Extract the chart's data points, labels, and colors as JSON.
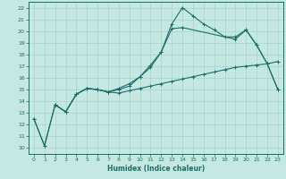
{
  "background_color": "#c5e8e2",
  "grid_color": "#9dcfc8",
  "line_color": "#1a6e6a",
  "xlabel": "Humidex (Indice chaleur)",
  "xlim": [
    -0.5,
    23.5
  ],
  "ylim": [
    9.5,
    22.5
  ],
  "xticks": [
    0,
    1,
    2,
    3,
    4,
    5,
    6,
    7,
    8,
    9,
    10,
    11,
    12,
    13,
    14,
    15,
    16,
    17,
    18,
    19,
    20,
    21,
    22,
    23
  ],
  "yticks": [
    10,
    11,
    12,
    13,
    14,
    15,
    16,
    17,
    18,
    19,
    20,
    21,
    22
  ],
  "line1_x": [
    0,
    1,
    2,
    3,
    4,
    5,
    6,
    7,
    8,
    9,
    10,
    11,
    12,
    13,
    14,
    15,
    16,
    17,
    18,
    19,
    20,
    21,
    22,
    23
  ],
  "line1_y": [
    12.5,
    10.2,
    13.7,
    13.1,
    14.6,
    15.1,
    15.0,
    14.8,
    14.7,
    14.9,
    15.1,
    15.3,
    15.5,
    15.7,
    15.9,
    16.1,
    16.3,
    16.5,
    16.7,
    16.9,
    17.0,
    17.1,
    17.2,
    17.4
  ],
  "line2_x": [
    0,
    1,
    2,
    3,
    4,
    5,
    6,
    7,
    8,
    9,
    10,
    11,
    12,
    13,
    14,
    15,
    16,
    17,
    18,
    19,
    20,
    21,
    22,
    23
  ],
  "line2_y": [
    12.5,
    10.2,
    13.7,
    13.1,
    14.6,
    15.1,
    15.0,
    14.8,
    15.0,
    15.3,
    16.1,
    17.1,
    18.2,
    20.6,
    22.0,
    21.3,
    20.6,
    20.1,
    19.5,
    19.5,
    20.1,
    18.8,
    17.2,
    15.0
  ],
  "line3_x": [
    2,
    3,
    4,
    5,
    6,
    7,
    8,
    9,
    10,
    11,
    12,
    13,
    14,
    19,
    20,
    21,
    22,
    23
  ],
  "line3_y": [
    13.7,
    13.1,
    14.6,
    15.1,
    15.0,
    14.8,
    15.1,
    15.5,
    16.1,
    16.9,
    18.2,
    20.2,
    20.3,
    19.3,
    20.1,
    18.8,
    17.2,
    15.0
  ]
}
